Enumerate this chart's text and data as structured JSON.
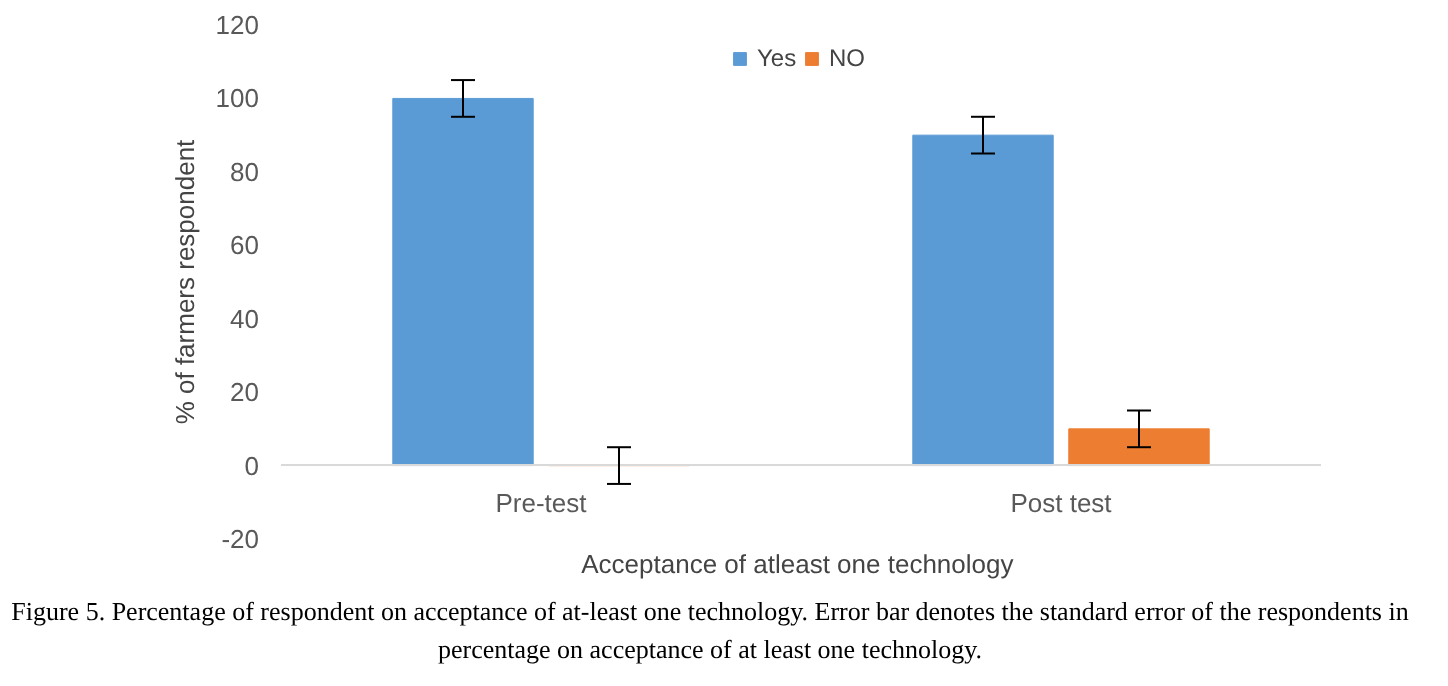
{
  "chart_data": {
    "type": "bar",
    "xlabel": "Acceptance of  atleast one technology",
    "ylabel": "% of farmers respondent",
    "categories": [
      "Pre-test",
      "Post test"
    ],
    "series": [
      {
        "name": "Yes",
        "color": "#5b9bd5",
        "values": [
          100,
          90
        ],
        "errors": [
          5,
          5
        ]
      },
      {
        "name": "NO",
        "color": "#ed7d31",
        "values": [
          0,
          10
        ],
        "errors": [
          5,
          5
        ]
      }
    ],
    "ylim": [
      -20,
      120
    ],
    "yticks": [
      -20,
      0,
      20,
      40,
      60,
      80,
      100,
      120
    ],
    "grid": false,
    "legend": "top",
    "annotations": [
      "Figure 5. Percentage of respondent on acceptance of at-least one technology. Error bar denotes the standard error of the respondents in percentage on acceptance of at least one technology."
    ]
  }
}
